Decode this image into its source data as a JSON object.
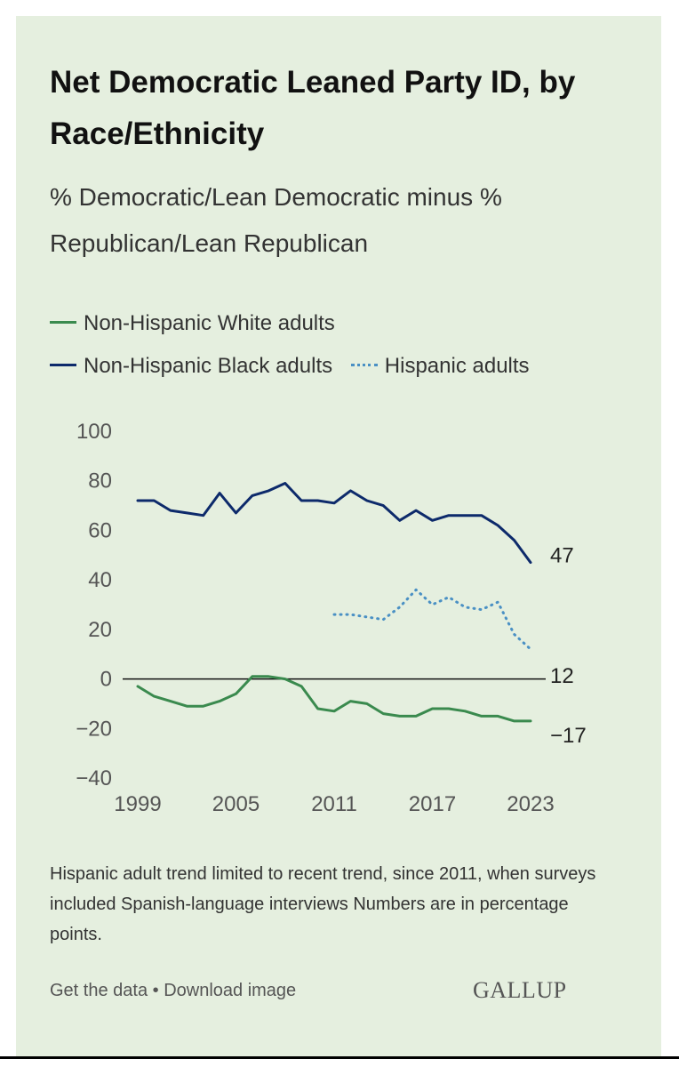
{
  "header": {
    "title": "Net Democratic Leaned Party ID, by Race/Ethnicity",
    "subtitle": "% Democratic/Lean Democratic minus % Republican/Lean Republican"
  },
  "legend": [
    {
      "label": "Non-Hispanic White adults",
      "color": "#3a8a4e",
      "style": "solid"
    },
    {
      "label": "Non-Hispanic Black adults",
      "color": "#0d2a6b",
      "style": "solid"
    },
    {
      "label": "Hispanic adults",
      "color": "#4a90c4",
      "style": "dotted"
    }
  ],
  "chart_data": {
    "type": "line",
    "title": "Net Democratic Leaned Party ID, by Race/Ethnicity",
    "subtitle": "% Democratic/Lean Democratic minus % Republican/Lean Republican",
    "xlabel": "",
    "ylabel": "",
    "xlim": [
      1999,
      2023
    ],
    "ylim": [
      -40,
      100
    ],
    "x_ticks": [
      1999,
      2005,
      2011,
      2017,
      2023
    ],
    "y_ticks": [
      100,
      80,
      60,
      40,
      20,
      0,
      -20,
      -40
    ],
    "grid": "zero line only",
    "legend_position": "top",
    "series": [
      {
        "name": "Non-Hispanic White adults",
        "color": "#3a8a4e",
        "style": "solid",
        "end_label": "−17",
        "points": [
          [
            1999,
            -3
          ],
          [
            2000,
            -7
          ],
          [
            2001,
            -9
          ],
          [
            2002,
            -11
          ],
          [
            2003,
            -11
          ],
          [
            2004,
            -9
          ],
          [
            2005,
            -6
          ],
          [
            2006,
            1
          ],
          [
            2007,
            1
          ],
          [
            2008,
            0
          ],
          [
            2009,
            -3
          ],
          [
            2010,
            -12
          ],
          [
            2011,
            -13
          ],
          [
            2012,
            -9
          ],
          [
            2013,
            -10
          ],
          [
            2014,
            -14
          ],
          [
            2015,
            -15
          ],
          [
            2016,
            -15
          ],
          [
            2017,
            -12
          ],
          [
            2018,
            -12
          ],
          [
            2019,
            -13
          ],
          [
            2020,
            -15
          ],
          [
            2021,
            -15
          ],
          [
            2022,
            -17
          ],
          [
            2023,
            -17
          ]
        ]
      },
      {
        "name": "Non-Hispanic Black adults",
        "color": "#0d2a6b",
        "style": "solid",
        "end_label": "47",
        "points": [
          [
            1999,
            72
          ],
          [
            2000,
            72
          ],
          [
            2001,
            68
          ],
          [
            2002,
            67
          ],
          [
            2003,
            66
          ],
          [
            2004,
            75
          ],
          [
            2005,
            67
          ],
          [
            2006,
            74
          ],
          [
            2007,
            76
          ],
          [
            2008,
            79
          ],
          [
            2009,
            72
          ],
          [
            2010,
            72
          ],
          [
            2011,
            71
          ],
          [
            2012,
            76
          ],
          [
            2013,
            72
          ],
          [
            2014,
            70
          ],
          [
            2015,
            64
          ],
          [
            2016,
            68
          ],
          [
            2017,
            64
          ],
          [
            2018,
            66
          ],
          [
            2019,
            66
          ],
          [
            2020,
            66
          ],
          [
            2021,
            62
          ],
          [
            2022,
            56
          ],
          [
            2023,
            47
          ]
        ]
      },
      {
        "name": "Hispanic adults",
        "color": "#4a90c4",
        "style": "dotted",
        "end_label": "12",
        "points": [
          [
            2011,
            26
          ],
          [
            2012,
            26
          ],
          [
            2013,
            25
          ],
          [
            2014,
            24
          ],
          [
            2015,
            29
          ],
          [
            2016,
            36
          ],
          [
            2017,
            30
          ],
          [
            2018,
            33
          ],
          [
            2019,
            29
          ],
          [
            2020,
            28
          ],
          [
            2021,
            31
          ],
          [
            2022,
            18
          ],
          [
            2023,
            12
          ]
        ]
      }
    ]
  },
  "note": "Hispanic adult trend limited to recent trend, since 2011, when surveys included Spanish-language interviews Numbers are in percentage points.",
  "footer": {
    "get_data": "Get the data",
    "separator": " • ",
    "download": "Download image",
    "logo": "GALLUP"
  }
}
